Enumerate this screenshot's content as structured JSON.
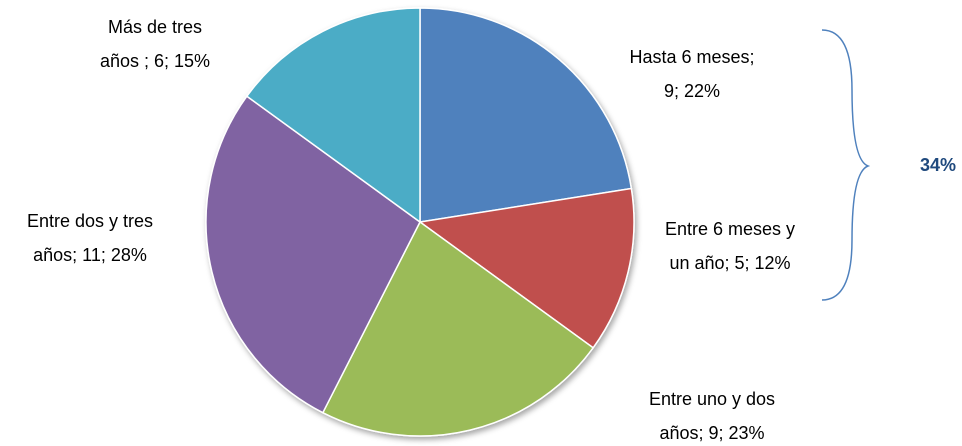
{
  "chart_data": {
    "type": "pie",
    "values": [
      9,
      5,
      9,
      11,
      6
    ],
    "value_labels": [
      [
        "Hasta 6 meses;",
        "9; 22%"
      ],
      [
        "Entre 6 meses y",
        "un año; 5; 12%"
      ],
      [
        "Entre uno y dos",
        "años; 9; 23%"
      ],
      [
        "Entre dos y tres",
        "años; 11; 28%"
      ],
      [
        "Más de tres",
        "años ; 6; 15%"
      ]
    ],
    "colors": [
      "#4f81bd",
      "#c0504d",
      "#9bbb59",
      "#8064a2",
      "#4bacc6"
    ],
    "annotation": "34%"
  }
}
